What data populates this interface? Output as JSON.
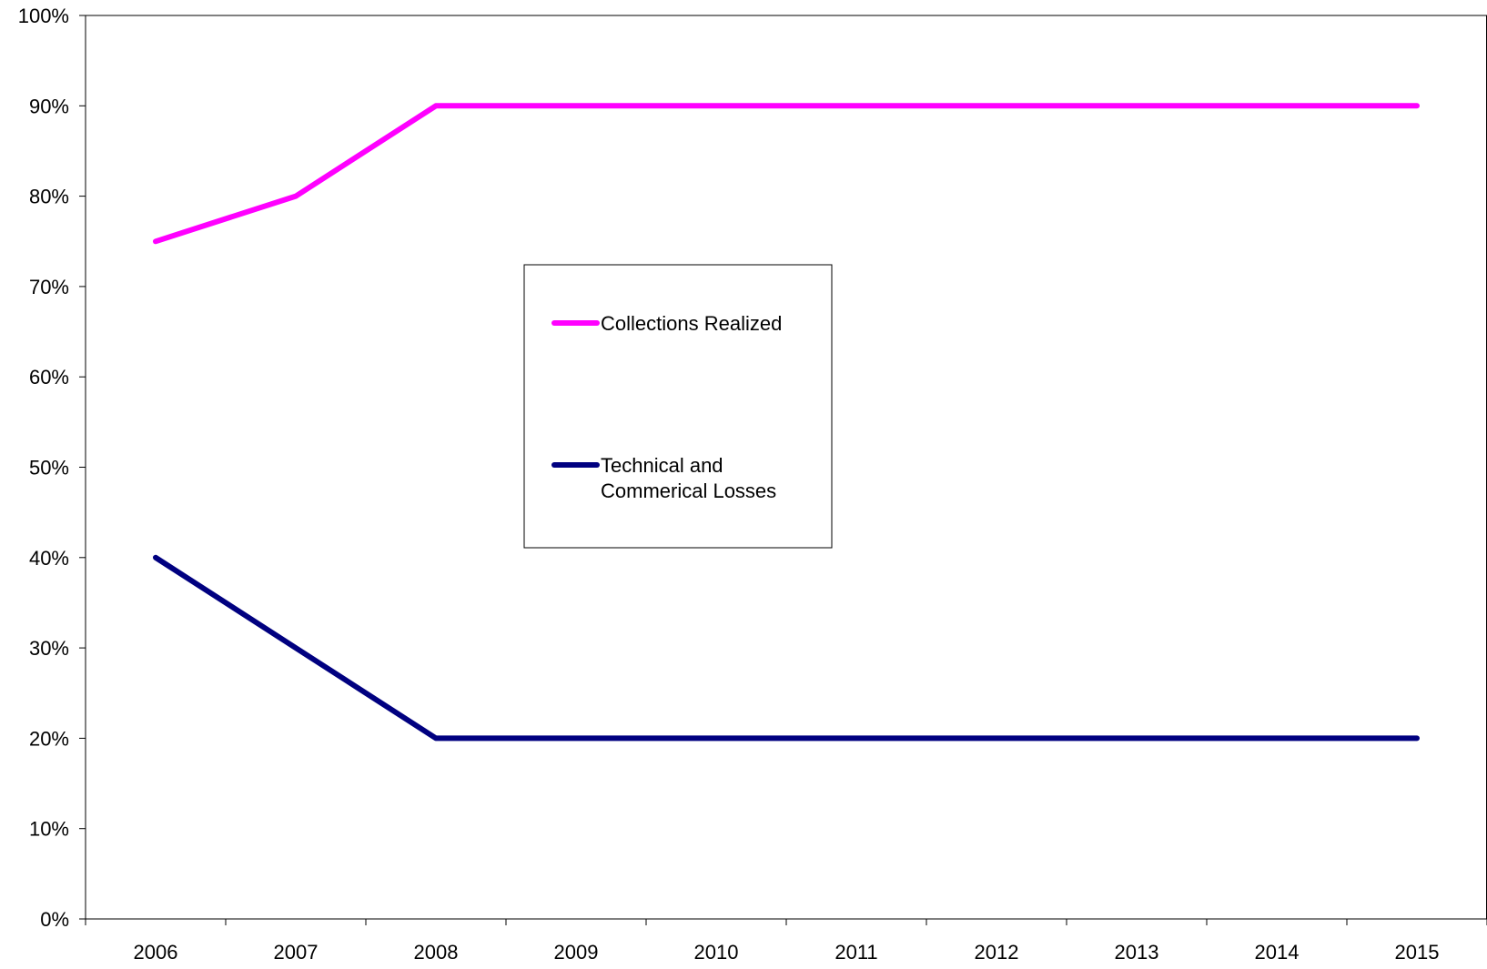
{
  "chart_data": {
    "type": "line",
    "categories": [
      "2006",
      "2007",
      "2008",
      "2009",
      "2010",
      "2011",
      "2012",
      "2013",
      "2014",
      "2015"
    ],
    "ylim": [
      0,
      100
    ],
    "y_ticks": [
      "0%",
      "10%",
      "20%",
      "30%",
      "40%",
      "50%",
      "60%",
      "70%",
      "80%",
      "90%",
      "100%"
    ],
    "grid": false,
    "legend_position": "center",
    "series": [
      {
        "name": "Collections Realized",
        "legend_lines": [
          "Collections Realized"
        ],
        "color": "#FF00FF",
        "values": [
          75,
          80,
          90,
          90,
          90,
          90,
          90,
          90,
          90,
          90
        ]
      },
      {
        "name": "Technical and Commerical Losses",
        "legend_lines": [
          "Technical and",
          "Commerical Losses"
        ],
        "color": "#000080",
        "values": [
          40,
          30,
          20,
          20,
          20,
          20,
          20,
          20,
          20,
          20
        ]
      }
    ]
  }
}
